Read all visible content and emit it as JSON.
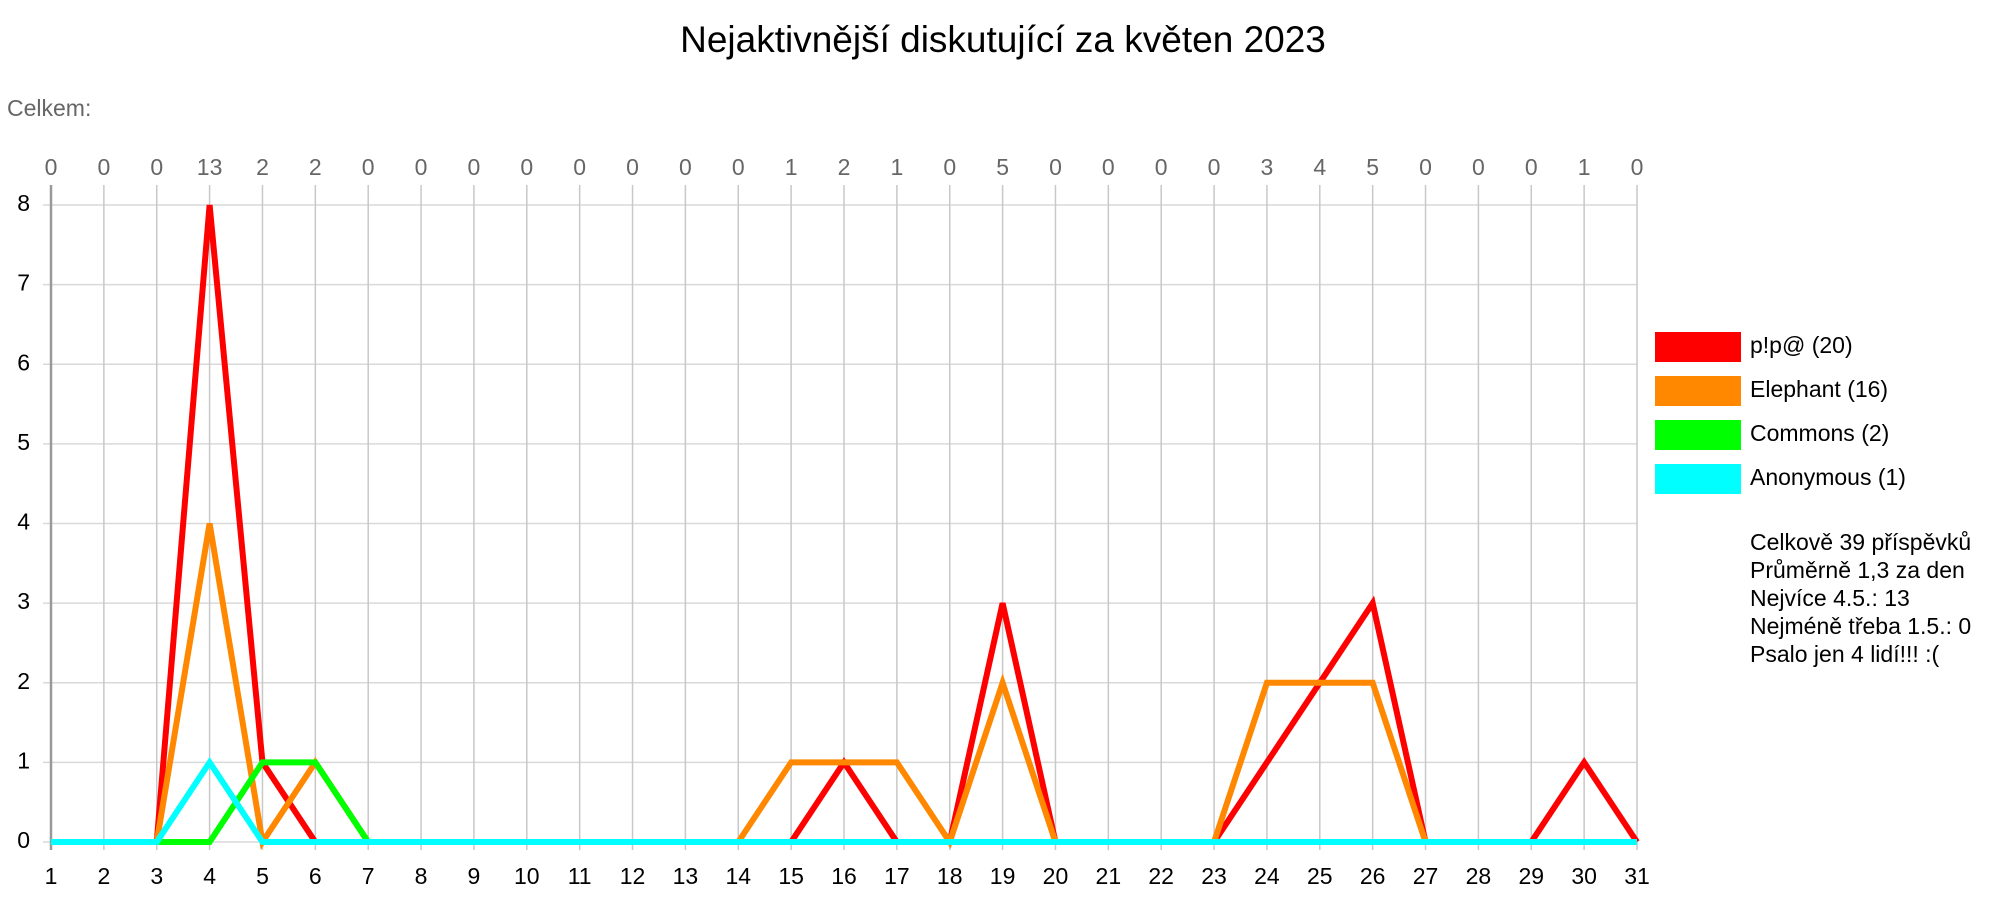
{
  "chart_data": {
    "type": "line",
    "title": "Nejaktivnější diskutující za květen 2023",
    "totals_label": "Celkem:",
    "totals": [
      0,
      0,
      0,
      13,
      2,
      2,
      0,
      0,
      0,
      0,
      0,
      0,
      0,
      0,
      1,
      2,
      1,
      0,
      5,
      0,
      0,
      0,
      0,
      3,
      4,
      5,
      0,
      0,
      0,
      1,
      0
    ],
    "x": [
      1,
      2,
      3,
      4,
      5,
      6,
      7,
      8,
      9,
      10,
      11,
      12,
      13,
      14,
      15,
      16,
      17,
      18,
      19,
      20,
      21,
      22,
      23,
      24,
      25,
      26,
      27,
      28,
      29,
      30,
      31
    ],
    "xlim": [
      1,
      31
    ],
    "xticks": [
      1,
      2,
      3,
      4,
      5,
      6,
      7,
      8,
      9,
      10,
      11,
      12,
      13,
      14,
      15,
      16,
      17,
      18,
      19,
      20,
      21,
      22,
      23,
      24,
      25,
      26,
      27,
      28,
      29,
      30,
      31
    ],
    "ylim": [
      0,
      8
    ],
    "yticks": [
      0,
      1,
      2,
      3,
      4,
      5,
      6,
      7,
      8
    ],
    "grid": true,
    "series": [
      {
        "name": "p!p@ (20)",
        "color": "#ff0000",
        "values": [
          0,
          0,
          0,
          8,
          1,
          0,
          0,
          0,
          0,
          0,
          0,
          0,
          0,
          0,
          0,
          1,
          0,
          0,
          3,
          0,
          0,
          0,
          0,
          1,
          2,
          3,
          0,
          0,
          0,
          1,
          0
        ]
      },
      {
        "name": "Elephant (16)",
        "color": "#ff8800",
        "values": [
          0,
          0,
          0,
          4,
          0,
          1,
          0,
          0,
          0,
          0,
          0,
          0,
          0,
          0,
          1,
          1,
          1,
          0,
          2,
          0,
          0,
          0,
          0,
          2,
          2,
          2,
          0,
          0,
          0,
          0,
          0
        ]
      },
      {
        "name": "Commons (2)",
        "color": "#00ff00",
        "values": [
          0,
          0,
          0,
          0,
          1,
          1,
          0,
          0,
          0,
          0,
          0,
          0,
          0,
          0,
          0,
          0,
          0,
          0,
          0,
          0,
          0,
          0,
          0,
          0,
          0,
          0,
          0,
          0,
          0,
          0,
          0
        ]
      },
      {
        "name": "Anonymous (1)",
        "color": "#00ffff",
        "values": [
          0,
          0,
          0,
          1,
          0,
          0,
          0,
          0,
          0,
          0,
          0,
          0,
          0,
          0,
          0,
          0,
          0,
          0,
          0,
          0,
          0,
          0,
          0,
          0,
          0,
          0,
          0,
          0,
          0,
          0,
          0
        ]
      }
    ],
    "stats": [
      "Celkově 39 příspěvků",
      "Průměrně 1,3 za den",
      "Nejvíce 4.5.: 13",
      "Nejméně třeba 1.5.: 0",
      "Psalo jen 4 lidí!!! :("
    ]
  }
}
